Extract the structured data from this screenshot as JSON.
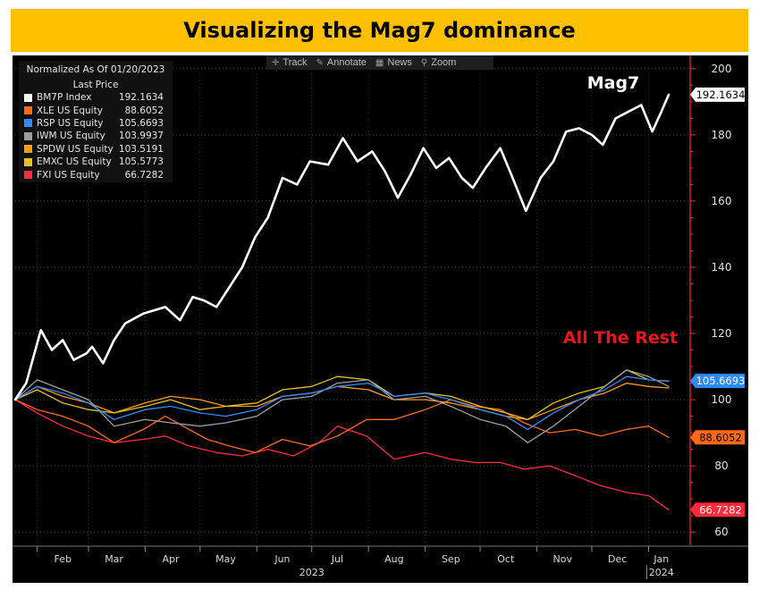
{
  "header": {
    "title": "Visualizing the Mag7 dominance"
  },
  "toolbar": {
    "track": "Track",
    "annotate": "Annotate",
    "news": "News",
    "zoom": "Zoom"
  },
  "legend": {
    "heading1": "Normalized As Of 01/20/2023",
    "heading2": "Last Price",
    "items": [
      {
        "name": "BM7P Index",
        "value": "192.1634",
        "color": "#ffffff"
      },
      {
        "name": "XLE US Equity",
        "value": "88.6052",
        "color": "#ff6a13"
      },
      {
        "name": "RSP US Equity",
        "value": "105.6693",
        "color": "#2e8bff"
      },
      {
        "name": "IWM US Equity",
        "value": "103.9937",
        "color": "#9e9e9e"
      },
      {
        "name": "SPDW US Equity",
        "value": "103.5191",
        "color": "#ff9d1a"
      },
      {
        "name": "EMXC US Equity",
        "value": "105.5773",
        "color": "#e8c21a"
      },
      {
        "name": "FXI US Equity",
        "value": "66.7282",
        "color": "#ff2a3a"
      }
    ]
  },
  "annotations": {
    "mag7": "Mag7",
    "rest": "All The Rest"
  },
  "chart_data": {
    "type": "line",
    "ylim": [
      56,
      204
    ],
    "xlim": [
      "2023-01-20",
      "2024-01-12"
    ],
    "y_ticks": [
      60,
      80,
      100,
      120,
      140,
      160,
      180,
      200
    ],
    "x_ticks": [
      {
        "label": "Feb",
        "date": "2023-02-15"
      },
      {
        "label": "Mar",
        "date": "2023-03-15"
      },
      {
        "label": "Apr",
        "date": "2023-04-15"
      },
      {
        "label": "May",
        "date": "2023-05-15"
      },
      {
        "label": "Jun",
        "date": "2023-06-15"
      },
      {
        "label": "Jul",
        "date": "2023-07-15"
      },
      {
        "label": "Aug",
        "date": "2023-08-15"
      },
      {
        "label": "Sep",
        "date": "2023-09-15"
      },
      {
        "label": "Oct",
        "date": "2023-10-15"
      },
      {
        "label": "Nov",
        "date": "2023-11-15"
      },
      {
        "label": "Dec",
        "date": "2023-12-15"
      },
      {
        "label": "Jan",
        "date": "2024-01-08"
      }
    ],
    "year_labels": [
      {
        "label": "2023",
        "date": "2023-07-01"
      },
      {
        "label": "2024",
        "date": "2024-01-08"
      }
    ],
    "series": [
      {
        "name": "BM7P Index",
        "color": "#ffffff",
        "width": 2.6,
        "last_label": "192.1634",
        "label_fill": "#ffffff",
        "label_text": "#000000",
        "points": [
          [
            "2023-01-20",
            100
          ],
          [
            "2023-01-26",
            105
          ],
          [
            "2023-02-01",
            117
          ],
          [
            "2023-02-03",
            121
          ],
          [
            "2023-02-09",
            115
          ],
          [
            "2023-02-15",
            118
          ],
          [
            "2023-02-21",
            112
          ],
          [
            "2023-02-28",
            114
          ],
          [
            "2023-03-03",
            116
          ],
          [
            "2023-03-09",
            111
          ],
          [
            "2023-03-15",
            118
          ],
          [
            "2023-03-21",
            123
          ],
          [
            "2023-03-31",
            126
          ],
          [
            "2023-04-06",
            127
          ],
          [
            "2023-04-12",
            128
          ],
          [
            "2023-04-20",
            124
          ],
          [
            "2023-04-27",
            131
          ],
          [
            "2023-05-03",
            130
          ],
          [
            "2023-05-10",
            128
          ],
          [
            "2023-05-17",
            134
          ],
          [
            "2023-05-24",
            140
          ],
          [
            "2023-05-31",
            149
          ],
          [
            "2023-06-07",
            155
          ],
          [
            "2023-06-15",
            167
          ],
          [
            "2023-06-23",
            165
          ],
          [
            "2023-06-30",
            172
          ],
          [
            "2023-07-10",
            171
          ],
          [
            "2023-07-18",
            179
          ],
          [
            "2023-07-26",
            172
          ],
          [
            "2023-08-03",
            175
          ],
          [
            "2023-08-10",
            169
          ],
          [
            "2023-08-17",
            161
          ],
          [
            "2023-08-24",
            168
          ],
          [
            "2023-08-31",
            176
          ],
          [
            "2023-09-07",
            170
          ],
          [
            "2023-09-14",
            173
          ],
          [
            "2023-09-21",
            167
          ],
          [
            "2023-09-27",
            164
          ],
          [
            "2023-10-04",
            170
          ],
          [
            "2023-10-12",
            176
          ],
          [
            "2023-10-18",
            168
          ],
          [
            "2023-10-26",
            157
          ],
          [
            "2023-11-03",
            167
          ],
          [
            "2023-11-10",
            172
          ],
          [
            "2023-11-17",
            181
          ],
          [
            "2023-11-24",
            182
          ],
          [
            "2023-12-01",
            180
          ],
          [
            "2023-12-07",
            177
          ],
          [
            "2023-12-14",
            185
          ],
          [
            "2023-12-21",
            187
          ],
          [
            "2023-12-28",
            189
          ],
          [
            "2024-01-03",
            181
          ],
          [
            "2024-01-08",
            187
          ],
          [
            "2024-01-12",
            192.1634
          ]
        ]
      },
      {
        "name": "RSP US Equity",
        "color": "#2e8bff",
        "width": 1.3,
        "last_label": "105.6693",
        "label_fill": "#2e8bff",
        "label_text": "#ffffff",
        "points": [
          [
            "2023-01-20",
            100
          ],
          [
            "2023-02-01",
            104
          ],
          [
            "2023-02-15",
            102
          ],
          [
            "2023-03-01",
            99
          ],
          [
            "2023-03-15",
            94
          ],
          [
            "2023-04-01",
            97
          ],
          [
            "2023-04-15",
            98
          ],
          [
            "2023-05-01",
            96
          ],
          [
            "2023-05-15",
            95
          ],
          [
            "2023-06-01",
            97
          ],
          [
            "2023-06-15",
            101
          ],
          [
            "2023-07-01",
            102
          ],
          [
            "2023-07-15",
            104
          ],
          [
            "2023-08-01",
            105
          ],
          [
            "2023-08-15",
            101
          ],
          [
            "2023-09-01",
            102
          ],
          [
            "2023-09-15",
            100
          ],
          [
            "2023-10-01",
            97
          ],
          [
            "2023-10-15",
            95
          ],
          [
            "2023-10-27",
            91
          ],
          [
            "2023-11-10",
            96
          ],
          [
            "2023-11-24",
            100
          ],
          [
            "2023-12-08",
            103
          ],
          [
            "2023-12-20",
            107
          ],
          [
            "2024-01-01",
            106
          ],
          [
            "2024-01-12",
            105.67
          ]
        ]
      },
      {
        "name": "IWM US Equity",
        "color": "#9e9e9e",
        "width": 1.3,
        "last_label": "103.9937",
        "label_fill": "#9e9e9e",
        "label_text": "#000000",
        "points": [
          [
            "2023-01-20",
            100
          ],
          [
            "2023-02-01",
            106
          ],
          [
            "2023-02-15",
            103
          ],
          [
            "2023-03-01",
            100
          ],
          [
            "2023-03-15",
            92
          ],
          [
            "2023-04-01",
            94
          ],
          [
            "2023-04-15",
            93
          ],
          [
            "2023-05-01",
            92
          ],
          [
            "2023-05-15",
            93
          ],
          [
            "2023-06-01",
            95
          ],
          [
            "2023-06-15",
            100
          ],
          [
            "2023-07-01",
            101
          ],
          [
            "2023-07-15",
            105
          ],
          [
            "2023-08-01",
            106
          ],
          [
            "2023-08-15",
            100
          ],
          [
            "2023-09-01",
            101
          ],
          [
            "2023-09-15",
            98
          ],
          [
            "2023-10-01",
            94
          ],
          [
            "2023-10-15",
            92
          ],
          [
            "2023-10-27",
            87
          ],
          [
            "2023-11-10",
            92
          ],
          [
            "2023-11-24",
            98
          ],
          [
            "2023-12-08",
            104
          ],
          [
            "2023-12-20",
            109
          ],
          [
            "2024-01-01",
            107
          ],
          [
            "2024-01-12",
            103.99
          ]
        ]
      },
      {
        "name": "EMXC US Equity",
        "color": "#e8c21a",
        "width": 1.3,
        "last_label": "105.5773",
        "label_fill": "#e8c21a",
        "label_text": "#000000",
        "points": [
          [
            "2023-01-20",
            100
          ],
          [
            "2023-02-01",
            103
          ],
          [
            "2023-02-15",
            99
          ],
          [
            "2023-03-01",
            97
          ],
          [
            "2023-03-15",
            96
          ],
          [
            "2023-04-01",
            98
          ],
          [
            "2023-04-15",
            100
          ],
          [
            "2023-05-01",
            97
          ],
          [
            "2023-05-15",
            98
          ],
          [
            "2023-06-01",
            99
          ],
          [
            "2023-06-15",
            103
          ],
          [
            "2023-07-01",
            104
          ],
          [
            "2023-07-15",
            107
          ],
          [
            "2023-08-01",
            106
          ],
          [
            "2023-08-15",
            101
          ],
          [
            "2023-09-01",
            102
          ],
          [
            "2023-09-15",
            101
          ],
          [
            "2023-10-01",
            98
          ],
          [
            "2023-10-15",
            96
          ],
          [
            "2023-10-27",
            94
          ],
          [
            "2023-11-10",
            99
          ],
          [
            "2023-11-24",
            102
          ],
          [
            "2023-12-08",
            104
          ],
          [
            "2023-12-20",
            109
          ],
          [
            "2024-01-01",
            106
          ],
          [
            "2024-01-12",
            105.58
          ]
        ]
      },
      {
        "name": "SPDW US Equity",
        "color": "#ff9d1a",
        "width": 1.3,
        "last_label": "103.5191",
        "label_fill": "#ff9d1a",
        "label_text": "#000000",
        "points": [
          [
            "2023-01-20",
            100
          ],
          [
            "2023-02-01",
            104
          ],
          [
            "2023-02-15",
            101
          ],
          [
            "2023-03-01",
            99
          ],
          [
            "2023-03-15",
            96
          ],
          [
            "2023-04-01",
            99
          ],
          [
            "2023-04-15",
            101
          ],
          [
            "2023-05-01",
            100
          ],
          [
            "2023-05-15",
            98
          ],
          [
            "2023-06-01",
            98
          ],
          [
            "2023-06-15",
            101
          ],
          [
            "2023-07-01",
            102
          ],
          [
            "2023-07-15",
            104
          ],
          [
            "2023-08-01",
            103
          ],
          [
            "2023-08-15",
            100
          ],
          [
            "2023-09-01",
            100
          ],
          [
            "2023-09-15",
            99
          ],
          [
            "2023-10-01",
            97
          ],
          [
            "2023-10-15",
            95
          ],
          [
            "2023-10-27",
            94
          ],
          [
            "2023-11-10",
            97
          ],
          [
            "2023-11-24",
            100
          ],
          [
            "2023-12-08",
            102
          ],
          [
            "2023-12-20",
            105
          ],
          [
            "2024-01-01",
            104
          ],
          [
            "2024-01-12",
            103.52
          ]
        ]
      },
      {
        "name": "XLE US Equity",
        "color": "#ff6a13",
        "width": 1.3,
        "last_label": "88.6052",
        "label_fill": "#ff6a13",
        "label_text": "#000000",
        "points": [
          [
            "2023-01-20",
            100
          ],
          [
            "2023-02-01",
            97
          ],
          [
            "2023-02-15",
            95
          ],
          [
            "2023-03-01",
            92
          ],
          [
            "2023-03-15",
            87
          ],
          [
            "2023-03-31",
            91
          ],
          [
            "2023-04-12",
            95
          ],
          [
            "2023-04-25",
            91
          ],
          [
            "2023-05-05",
            88
          ],
          [
            "2023-05-17",
            86
          ],
          [
            "2023-05-31",
            84
          ],
          [
            "2023-06-15",
            88
          ],
          [
            "2023-06-30",
            86
          ],
          [
            "2023-07-15",
            89
          ],
          [
            "2023-07-31",
            94
          ],
          [
            "2023-08-15",
            94
          ],
          [
            "2023-09-01",
            97
          ],
          [
            "2023-09-15",
            100
          ],
          [
            "2023-09-28",
            98
          ],
          [
            "2023-10-12",
            97
          ],
          [
            "2023-10-25",
            93
          ],
          [
            "2023-11-08",
            90
          ],
          [
            "2023-11-22",
            91
          ],
          [
            "2023-12-06",
            89
          ],
          [
            "2023-12-20",
            91
          ],
          [
            "2024-01-01",
            92
          ],
          [
            "2024-01-12",
            88.61
          ]
        ]
      },
      {
        "name": "FXI US Equity",
        "color": "#ff2a3a",
        "width": 1.3,
        "last_label": "66.7282",
        "label_fill": "#ff2a3a",
        "label_text": "#ffffff",
        "points": [
          [
            "2023-01-20",
            100
          ],
          [
            "2023-02-01",
            96
          ],
          [
            "2023-02-15",
            92
          ],
          [
            "2023-03-01",
            89
          ],
          [
            "2023-03-15",
            87
          ],
          [
            "2023-03-31",
            88
          ],
          [
            "2023-04-12",
            89
          ],
          [
            "2023-04-25",
            86
          ],
          [
            "2023-05-10",
            84
          ],
          [
            "2023-05-24",
            83
          ],
          [
            "2023-06-07",
            85
          ],
          [
            "2023-06-21",
            83
          ],
          [
            "2023-07-05",
            87
          ],
          [
            "2023-07-15",
            92
          ],
          [
            "2023-07-31",
            89
          ],
          [
            "2023-08-15",
            82
          ],
          [
            "2023-09-01",
            84
          ],
          [
            "2023-09-15",
            82
          ],
          [
            "2023-09-28",
            81
          ],
          [
            "2023-10-12",
            81
          ],
          [
            "2023-10-25",
            79
          ],
          [
            "2023-11-08",
            80
          ],
          [
            "2023-11-22",
            77
          ],
          [
            "2023-12-06",
            74
          ],
          [
            "2023-12-20",
            72
          ],
          [
            "2024-01-01",
            71
          ],
          [
            "2024-01-12",
            66.73
          ]
        ]
      }
    ]
  }
}
